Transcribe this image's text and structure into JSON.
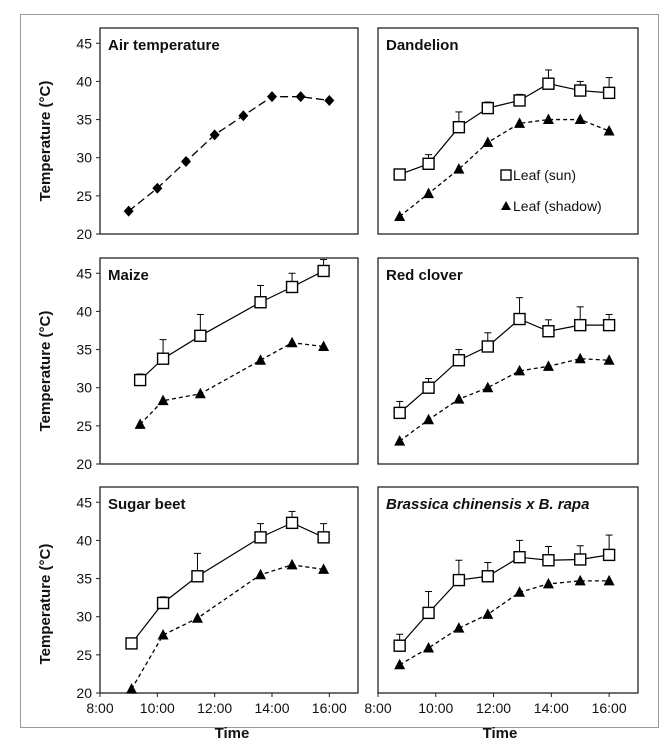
{
  "chart_data": {
    "type": "line",
    "y_axis_label": "Temperature (°C)",
    "x_axis_label": "Time",
    "x_ticks": [
      "8:00",
      "10:00",
      "12:00",
      "14:00",
      "16:00"
    ],
    "x_range": [
      8,
      17
    ],
    "y_range": [
      20,
      47
    ],
    "y_ticks": [
      20,
      25,
      30,
      35,
      40,
      45
    ],
    "legend": {
      "sun": "Leaf (sun)",
      "shadow": "Leaf (shadow)",
      "placement": "inside Dandelion panel, lower-right"
    },
    "colors": {
      "line": "#000000",
      "sun_marker_fill": "#ffffff",
      "shadow_marker_fill": "#000000"
    },
    "panels": [
      {
        "title": "Air temperature",
        "italic": false,
        "series": [
          {
            "key": "air",
            "marker": "diamond",
            "dash": true,
            "x": [
              9.0,
              10.0,
              11.0,
              12.0,
              13.0,
              14.0,
              15.0,
              16.0
            ],
            "y": [
              23.0,
              26.0,
              29.5,
              33.0,
              35.5,
              38.0,
              38.0,
              37.5
            ],
            "err": [
              0,
              0,
              0,
              0,
              0,
              0,
              0,
              0
            ]
          }
        ]
      },
      {
        "title": "Dandelion",
        "italic": false,
        "series": [
          {
            "key": "sun",
            "marker": "square",
            "dash": false,
            "x": [
              8.75,
              9.75,
              10.8,
              11.8,
              12.9,
              13.9,
              15.0,
              16.0
            ],
            "y": [
              27.8,
              29.2,
              34.0,
              36.5,
              37.5,
              39.7,
              38.8,
              38.5
            ],
            "err": [
              0.6,
              1.2,
              2.0,
              0.8,
              0.8,
              1.8,
              1.2,
              2.0
            ]
          },
          {
            "key": "shadow",
            "marker": "triangle",
            "dash": true,
            "x": [
              8.75,
              9.75,
              10.8,
              11.8,
              12.9,
              13.9,
              15.0,
              16.0
            ],
            "y": [
              22.3,
              25.3,
              28.5,
              32.0,
              34.5,
              35.0,
              35.0,
              33.5
            ],
            "err": [
              0,
              0,
              0,
              0,
              0,
              0,
              0,
              0
            ]
          }
        ]
      },
      {
        "title": "Maize",
        "italic": false,
        "series": [
          {
            "key": "sun",
            "marker": "square",
            "dash": false,
            "x": [
              9.4,
              10.2,
              11.5,
              13.6,
              14.7,
              15.8
            ],
            "y": [
              31.0,
              33.8,
              36.8,
              41.2,
              43.2,
              45.3
            ],
            "err": [
              0.8,
              2.5,
              2.8,
              2.2,
              1.8,
              1.5
            ]
          },
          {
            "key": "shadow",
            "marker": "triangle",
            "dash": true,
            "x": [
              9.4,
              10.2,
              11.5,
              13.6,
              14.7,
              15.8
            ],
            "y": [
              25.2,
              28.3,
              29.2,
              33.6,
              35.9,
              35.4
            ],
            "err": [
              0,
              0,
              0,
              0,
              0,
              0
            ]
          }
        ]
      },
      {
        "title": "Red clover",
        "italic": false,
        "series": [
          {
            "key": "sun",
            "marker": "square",
            "dash": false,
            "x": [
              8.75,
              9.75,
              10.8,
              11.8,
              12.9,
              13.9,
              15.0,
              16.0
            ],
            "y": [
              26.7,
              30.0,
              33.6,
              35.4,
              39.0,
              37.4,
              38.2,
              38.2
            ],
            "err": [
              1.5,
              1.2,
              1.4,
              1.8,
              2.8,
              1.5,
              2.4,
              1.4
            ]
          },
          {
            "key": "shadow",
            "marker": "triangle",
            "dash": true,
            "x": [
              8.75,
              9.75,
              10.8,
              11.8,
              12.9,
              13.9,
              15.0,
              16.0
            ],
            "y": [
              23.0,
              25.8,
              28.5,
              30.0,
              32.2,
              32.8,
              33.8,
              33.6
            ],
            "err": [
              0,
              0,
              0,
              0,
              0,
              0,
              0,
              0
            ]
          }
        ]
      },
      {
        "title": "Sugar beet",
        "italic": false,
        "series": [
          {
            "key": "sun",
            "marker": "square",
            "dash": false,
            "x": [
              9.1,
              10.2,
              11.4,
              13.6,
              14.7,
              15.8
            ],
            "y": [
              26.5,
              31.8,
              35.3,
              40.4,
              42.3,
              40.4
            ],
            "err": [
              0.5,
              0.8,
              3.0,
              1.8,
              1.5,
              1.8
            ]
          },
          {
            "key": "shadow",
            "marker": "triangle",
            "dash": true,
            "x": [
              9.1,
              10.2,
              11.4,
              13.6,
              14.7,
              15.8
            ],
            "y": [
              20.5,
              27.6,
              29.8,
              35.5,
              36.8,
              36.2
            ],
            "err": [
              0,
              0,
              0,
              0,
              0,
              0
            ]
          }
        ]
      },
      {
        "title": "Brassica chinensis x B. rapa",
        "italic": true,
        "series": [
          {
            "key": "sun",
            "marker": "square",
            "dash": false,
            "x": [
              8.75,
              9.75,
              10.8,
              11.8,
              12.9,
              13.9,
              15.0,
              16.0
            ],
            "y": [
              26.2,
              30.5,
              34.8,
              35.3,
              37.8,
              37.4,
              37.5,
              38.1
            ],
            "err": [
              1.5,
              2.8,
              2.6,
              1.8,
              2.2,
              1.8,
              1.8,
              2.6
            ]
          },
          {
            "key": "shadow",
            "marker": "triangle",
            "dash": true,
            "x": [
              8.75,
              9.75,
              10.8,
              11.8,
              12.9,
              13.9,
              15.0,
              16.0
            ],
            "y": [
              23.7,
              25.9,
              28.5,
              30.3,
              33.2,
              34.3,
              34.7,
              34.7
            ],
            "err": [
              0,
              0,
              0,
              0,
              0,
              0,
              0,
              0
            ]
          }
        ]
      }
    ]
  }
}
